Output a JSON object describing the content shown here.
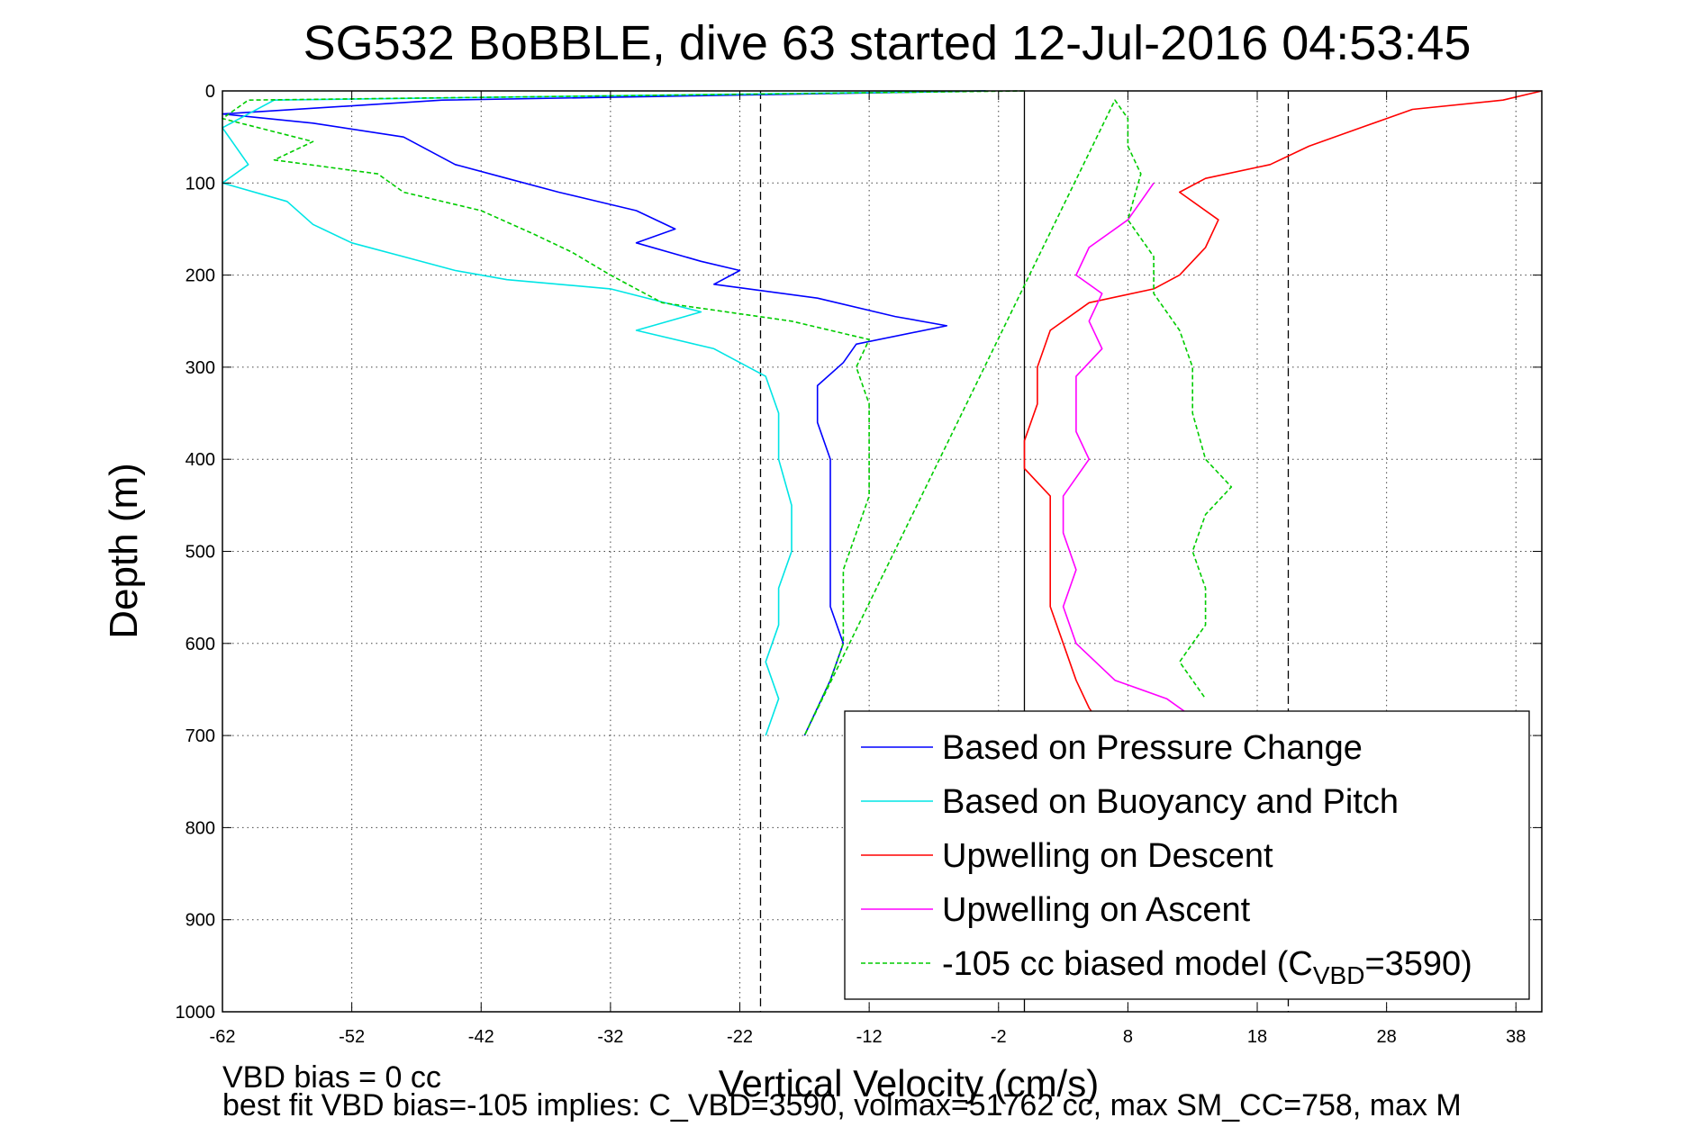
{
  "chart_data": {
    "type": "line",
    "title": "SG532 BoBBLE, dive 63 started 12-Jul-2016 04:53:45",
    "xlabel": "Vertical Velocity (cm/s)",
    "ylabel": "Depth (m)",
    "xlim": [
      -62,
      40
    ],
    "ylim": [
      0,
      1000
    ],
    "y_reversed": true,
    "xticks": [
      -62,
      -52,
      -42,
      -32,
      -22,
      -12,
      -2,
      8,
      18,
      28,
      38
    ],
    "yticks": [
      0,
      100,
      200,
      300,
      400,
      500,
      600,
      700,
      800,
      900,
      1000
    ],
    "grid": true,
    "legend_position": "bottom-right",
    "reference_lines": [
      {
        "x": 0,
        "style": "solid"
      },
      {
        "x": -20.4,
        "style": "dashed"
      },
      {
        "x": 20.4,
        "style": "dashed"
      }
    ],
    "series": [
      {
        "name": "Based on Pressure Change",
        "color": "#0000ff",
        "style": "solid",
        "points": [
          [
            -3,
            0
          ],
          [
            -45,
            10
          ],
          [
            -62,
            25
          ],
          [
            -55,
            35
          ],
          [
            -48,
            50
          ],
          [
            -44,
            80
          ],
          [
            -40,
            95
          ],
          [
            -36,
            110
          ],
          [
            -30,
            130
          ],
          [
            -27,
            150
          ],
          [
            -30,
            165
          ],
          [
            -25,
            185
          ],
          [
            -22,
            195
          ],
          [
            -24,
            210
          ],
          [
            -16,
            225
          ],
          [
            -10,
            245
          ],
          [
            -6,
            255
          ],
          [
            -13,
            275
          ],
          [
            -14,
            295
          ],
          [
            -16,
            320
          ],
          [
            -16,
            360
          ],
          [
            -15,
            400
          ],
          [
            -15,
            460
          ],
          [
            -15,
            520
          ],
          [
            -15,
            560
          ],
          [
            -14,
            600
          ],
          [
            -15,
            640
          ],
          [
            -16,
            670
          ],
          [
            -17,
            700
          ]
        ]
      },
      {
        "name": "Based on Buoyancy and Pitch",
        "color": "#00e5e5",
        "style": "solid",
        "points": [
          [
            -3,
            0
          ],
          [
            -58,
            10
          ],
          [
            -62,
            40
          ],
          [
            -60,
            80
          ],
          [
            -62,
            100
          ],
          [
            -57,
            120
          ],
          [
            -55,
            145
          ],
          [
            -52,
            165
          ],
          [
            -48,
            180
          ],
          [
            -44,
            195
          ],
          [
            -40,
            205
          ],
          [
            -32,
            215
          ],
          [
            -25,
            240
          ],
          [
            -30,
            260
          ],
          [
            -24,
            280
          ],
          [
            -20,
            310
          ],
          [
            -19,
            350
          ],
          [
            -19,
            400
          ],
          [
            -18,
            450
          ],
          [
            -18,
            500
          ],
          [
            -19,
            540
          ],
          [
            -19,
            580
          ],
          [
            -20,
            620
          ],
          [
            -19,
            660
          ],
          [
            -20,
            700
          ]
        ]
      },
      {
        "name": "Upwelling on Descent",
        "color": "#ff0000",
        "style": "solid",
        "points": [
          [
            40,
            0
          ],
          [
            37,
            10
          ],
          [
            30,
            20
          ],
          [
            26,
            40
          ],
          [
            22,
            60
          ],
          [
            19,
            80
          ],
          [
            14,
            95
          ],
          [
            12,
            110
          ],
          [
            15,
            140
          ],
          [
            14,
            170
          ],
          [
            12,
            200
          ],
          [
            10,
            215
          ],
          [
            5,
            230
          ],
          [
            2,
            260
          ],
          [
            1,
            300
          ],
          [
            1,
            340
          ],
          [
            0,
            380
          ],
          [
            0,
            410
          ],
          [
            2,
            440
          ],
          [
            2,
            480
          ],
          [
            2,
            520
          ],
          [
            2,
            560
          ],
          [
            3,
            600
          ],
          [
            4,
            640
          ],
          [
            5,
            670
          ],
          [
            6,
            690
          ]
        ]
      },
      {
        "name": "Upwelling on Ascent",
        "color": "#ff00ff",
        "style": "solid",
        "points": [
          [
            10,
            100
          ],
          [
            9,
            120
          ],
          [
            8,
            140
          ],
          [
            5,
            170
          ],
          [
            4,
            200
          ],
          [
            6,
            220
          ],
          [
            5,
            250
          ],
          [
            6,
            280
          ],
          [
            4,
            310
          ],
          [
            4,
            340
          ],
          [
            4,
            370
          ],
          [
            5,
            400
          ],
          [
            3,
            440
          ],
          [
            3,
            480
          ],
          [
            4,
            520
          ],
          [
            3,
            560
          ],
          [
            4,
            600
          ],
          [
            7,
            640
          ],
          [
            11,
            660
          ],
          [
            13,
            680
          ]
        ]
      },
      {
        "name": "-105 cc biased model (C_VBD=3590)",
        "legend_label_prefix": "-105 cc biased model (C",
        "legend_label_sub": "VBD",
        "legend_label_suffix": "=3590)",
        "color": "#00cc00",
        "style": "dashed",
        "points": [
          [
            0,
            0
          ],
          [
            -60,
            10
          ],
          [
            -62,
            30
          ],
          [
            -55,
            55
          ],
          [
            -58,
            75
          ],
          [
            -50,
            90
          ],
          [
            -48,
            110
          ],
          [
            -42,
            130
          ],
          [
            -38,
            155
          ],
          [
            -35,
            175
          ],
          [
            -32,
            200
          ],
          [
            -28,
            230
          ],
          [
            -18,
            250
          ],
          [
            -12,
            270
          ],
          [
            -13,
            300
          ],
          [
            -12,
            340
          ],
          [
            -12,
            400
          ],
          [
            -12,
            440
          ],
          [
            -13,
            480
          ],
          [
            -14,
            520
          ],
          [
            -14,
            560
          ],
          [
            -14,
            600
          ],
          [
            -15,
            640
          ],
          [
            -16,
            670
          ],
          [
            -17,
            700
          ],
          [
            7,
            10
          ],
          [
            8,
            30
          ],
          [
            8,
            60
          ],
          [
            9,
            90
          ],
          [
            8,
            140
          ],
          [
            10,
            180
          ],
          [
            10,
            220
          ],
          [
            12,
            260
          ],
          [
            13,
            300
          ],
          [
            13,
            350
          ],
          [
            14,
            400
          ],
          [
            16,
            430
          ],
          [
            14,
            460
          ],
          [
            13,
            500
          ],
          [
            14,
            540
          ],
          [
            14,
            580
          ],
          [
            12,
            620
          ],
          [
            14,
            660
          ]
        ]
      }
    ]
  },
  "footer": {
    "line1": "VBD bias = 0 cc",
    "line2": "best fit VBD bias=-105 implies: C_VBD=3590, volmax=51762 cc, max SM_CC=758, max M"
  }
}
